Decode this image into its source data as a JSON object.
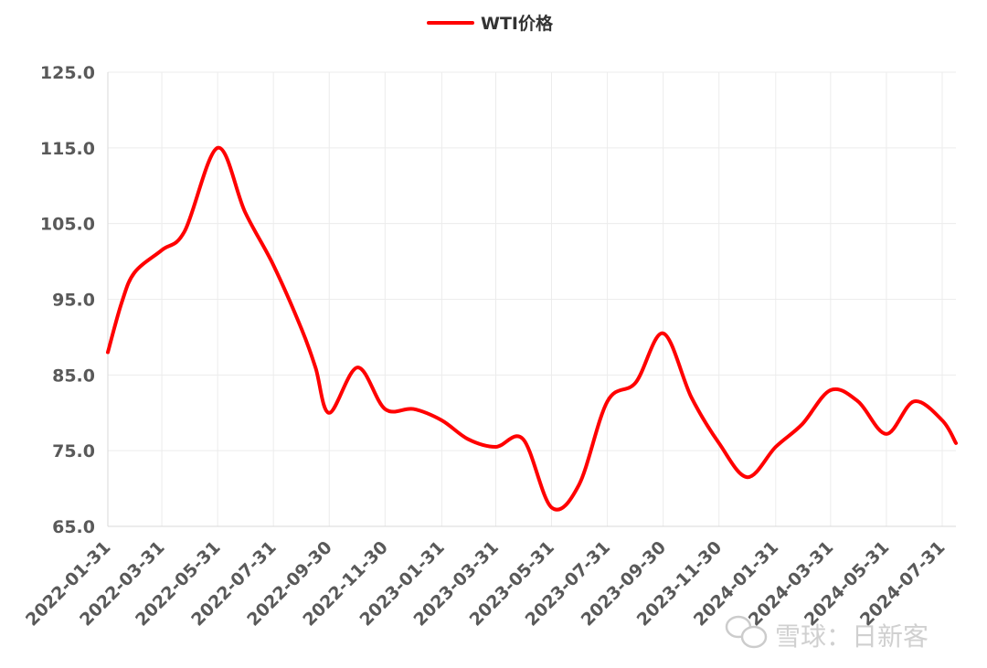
{
  "chart_data": {
    "type": "line",
    "title": "",
    "xlabel": "",
    "ylabel": "",
    "legend": {
      "position": "top-center",
      "entries": [
        "WTI价格"
      ]
    },
    "grid": true,
    "ylim": [
      65,
      125
    ],
    "yticks": [
      65,
      75,
      85,
      95,
      105,
      115,
      125
    ],
    "ytick_labels": [
      "65.0",
      "75.0",
      "85.0",
      "95.0",
      "105.0",
      "115.0",
      "125.0"
    ],
    "xlim": [
      "2022-01-31",
      "2024-08-15"
    ],
    "xticks": [
      "2022-01-31",
      "2022-03-31",
      "2022-05-31",
      "2022-07-31",
      "2022-09-30",
      "2022-11-30",
      "2023-01-31",
      "2023-03-31",
      "2023-05-31",
      "2023-07-31",
      "2023-09-30",
      "2023-11-30",
      "2024-01-31",
      "2024-03-31",
      "2024-05-31",
      "2024-07-31"
    ],
    "series": [
      {
        "name": "WTI价格",
        "color": "#ff0000",
        "points": [
          [
            "2022-01-31",
            88.0
          ],
          [
            "2022-02-15",
            94.5
          ],
          [
            "2022-03-01",
            98.5
          ],
          [
            "2022-03-31",
            101.5
          ],
          [
            "2022-04-25",
            104.0
          ],
          [
            "2022-05-31",
            115.0
          ],
          [
            "2022-06-30",
            106.5
          ],
          [
            "2022-07-31",
            99.5
          ],
          [
            "2022-08-31",
            91.0
          ],
          [
            "2022-09-15",
            86.0
          ],
          [
            "2022-09-30",
            80.0
          ],
          [
            "2022-10-31",
            86.0
          ],
          [
            "2022-11-30",
            80.5
          ],
          [
            "2022-12-31",
            80.5
          ],
          [
            "2023-01-31",
            79.0
          ],
          [
            "2023-03-01",
            76.5
          ],
          [
            "2023-03-31",
            75.5
          ],
          [
            "2023-04-30",
            76.5
          ],
          [
            "2023-05-31",
            67.5
          ],
          [
            "2023-06-30",
            70.5
          ],
          [
            "2023-07-31",
            81.5
          ],
          [
            "2023-08-31",
            84.0
          ],
          [
            "2023-09-30",
            90.5
          ],
          [
            "2023-10-31",
            82.0
          ],
          [
            "2023-11-30",
            76.0
          ],
          [
            "2023-12-31",
            71.5
          ],
          [
            "2024-01-31",
            75.5
          ],
          [
            "2024-02-29",
            78.5
          ],
          [
            "2024-03-31",
            83.0
          ],
          [
            "2024-04-30",
            81.5
          ],
          [
            "2024-05-31",
            77.2
          ],
          [
            "2024-06-30",
            81.5
          ],
          [
            "2024-07-31",
            79.0
          ],
          [
            "2024-08-15",
            76.0
          ]
        ]
      }
    ]
  },
  "watermark": {
    "text": "雪球：日新客",
    "icon": "wechat-icon",
    "color": "#cccccc"
  }
}
